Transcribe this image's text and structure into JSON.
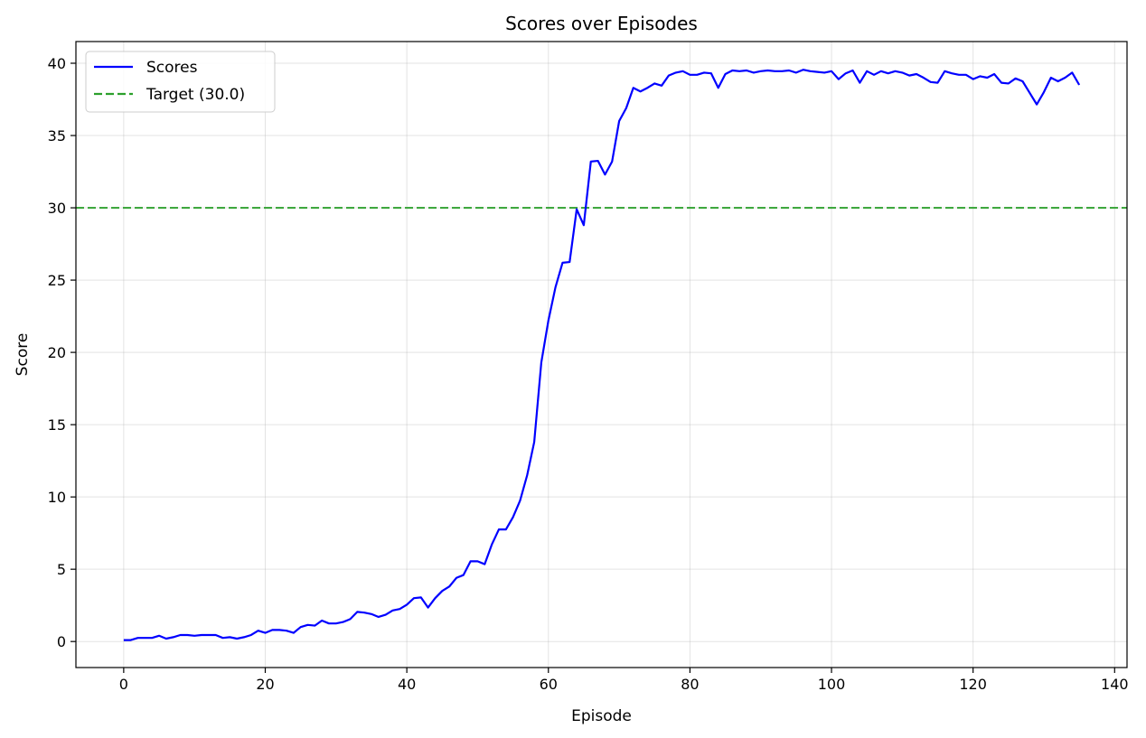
{
  "chart_data": {
    "type": "line",
    "title": "Scores over Episodes",
    "xlabel": "Episode",
    "ylabel": "Score",
    "xlim": [
      -6.75,
      141.75
    ],
    "ylim": [
      -1.8,
      41.5
    ],
    "xticks": [
      0,
      20,
      40,
      60,
      80,
      100,
      120,
      140
    ],
    "yticks": [
      0,
      5,
      10,
      15,
      20,
      25,
      30,
      35,
      40
    ],
    "grid": true,
    "legend_position": "upper-left",
    "series": [
      {
        "name": "Scores",
        "color": "#0000ff",
        "style": "solid",
        "x": [
          0,
          1,
          2,
          3,
          4,
          5,
          6,
          7,
          8,
          9,
          10,
          11,
          12,
          13,
          14,
          15,
          16,
          17,
          18,
          19,
          20,
          21,
          22,
          23,
          24,
          25,
          26,
          27,
          28,
          29,
          30,
          31,
          32,
          33,
          34,
          35,
          36,
          37,
          38,
          39,
          40,
          41,
          42,
          43,
          44,
          45,
          46,
          47,
          48,
          49,
          50,
          51,
          52,
          53,
          54,
          55,
          56,
          57,
          58,
          59,
          60,
          61,
          62,
          63,
          64,
          65,
          66,
          67,
          68,
          69,
          70,
          71,
          72,
          73,
          74,
          75,
          76,
          77,
          78,
          79,
          80,
          81,
          82,
          83,
          84,
          85,
          86,
          87,
          88,
          89,
          90,
          91,
          92,
          93,
          94,
          95,
          96,
          97,
          98,
          99,
          100,
          101,
          102,
          103,
          104,
          105,
          106,
          107,
          108,
          109,
          110,
          111,
          112,
          113,
          114,
          115,
          116,
          117,
          118,
          119,
          120,
          121,
          122,
          123,
          124,
          125,
          126,
          127,
          128,
          129,
          130,
          131,
          132,
          133,
          134,
          135
        ],
        "y": [
          0.1,
          0.1,
          0.25,
          0.25,
          0.25,
          0.4,
          0.2,
          0.3,
          0.45,
          0.45,
          0.4,
          0.45,
          0.45,
          0.45,
          0.25,
          0.3,
          0.2,
          0.3,
          0.45,
          0.75,
          0.6,
          0.8,
          0.8,
          0.75,
          0.6,
          1.0,
          1.15,
          1.1,
          1.45,
          1.25,
          1.25,
          1.35,
          1.55,
          2.05,
          2.0,
          1.9,
          1.7,
          1.85,
          2.15,
          2.25,
          2.55,
          3.0,
          3.05,
          2.35,
          3.0,
          3.5,
          3.8,
          4.4,
          4.6,
          5.55,
          5.55,
          5.35,
          6.7,
          7.75,
          7.75,
          8.6,
          9.75,
          11.5,
          13.8,
          19.3,
          22.2,
          24.5,
          26.2,
          26.25,
          29.9,
          28.8,
          33.2,
          33.25,
          32.3,
          33.2,
          36.0,
          36.9,
          38.3,
          38.05,
          38.3,
          38.6,
          38.45,
          39.15,
          39.35,
          39.45,
          39.2,
          39.2,
          39.35,
          39.3,
          38.3,
          39.25,
          39.5,
          39.45,
          39.5,
          39.35,
          39.45,
          39.5,
          39.45,
          39.45,
          39.5,
          39.35,
          39.55,
          39.45,
          39.4,
          39.35,
          39.45,
          38.9,
          39.3,
          39.5,
          38.65,
          39.45,
          39.2,
          39.45,
          39.3,
          39.45,
          39.35,
          39.15,
          39.25,
          39.0,
          38.7,
          38.65,
          39.45,
          39.3,
          39.2,
          39.2,
          38.9,
          39.1,
          39.0,
          39.25,
          38.65,
          38.6,
          38.95,
          38.75,
          37.95,
          37.15,
          38.0,
          39.0,
          38.75,
          39.0,
          39.35,
          38.5
        ]
      },
      {
        "name": "Target (30.0)",
        "color": "#2ca02c",
        "style": "dashed",
        "y_constant": 30.0
      }
    ]
  }
}
